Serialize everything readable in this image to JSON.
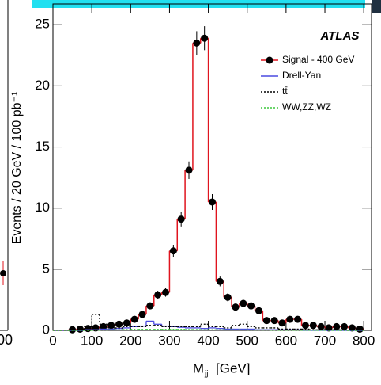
{
  "chart_data": {
    "type": "histogram",
    "title": "ATLAS",
    "y_label": "Events / 20 GeV / 100 pb⁻¹",
    "x_label": {
      "main": "M",
      "sub": "jj",
      "unit": "[GeV]"
    },
    "left_panel_tick": "00",
    "bins": [
      0,
      20,
      40,
      60,
      80,
      100,
      120,
      140,
      160,
      180,
      200,
      220,
      240,
      260,
      280,
      300,
      320,
      340,
      360,
      380,
      400,
      420,
      440,
      460,
      480,
      500,
      520,
      540,
      560,
      580,
      600,
      620,
      640,
      660,
      680,
      700,
      720,
      740,
      760,
      780,
      800
    ],
    "xlim": [
      0,
      820
    ],
    "xticks": [
      0,
      100,
      200,
      300,
      400,
      500,
      600,
      700,
      800
    ],
    "ylim": [
      0,
      26.7
    ],
    "yticks": [
      0,
      5,
      10,
      15,
      20,
      25
    ],
    "series": [
      {
        "name": "Signal - 400 GeV",
        "color": "#e0141e",
        "style": "points",
        "values": [
          0,
          0,
          0.05,
          0.1,
          0.15,
          0.2,
          0.3,
          0.4,
          0.5,
          0.6,
          0.9,
          1.3,
          2.0,
          2.9,
          3.1,
          6.5,
          9.1,
          13.1,
          23.5,
          23.9,
          10.5,
          4.0,
          2.7,
          1.9,
          2.2,
          2.0,
          1.6,
          0.8,
          0.8,
          0.6,
          0.9,
          0.9,
          0.4,
          0.4,
          0.3,
          0.2,
          0.3,
          0.3,
          0.2,
          0.1
        ],
        "errors": [
          0,
          0,
          0.05,
          0.06,
          0.08,
          0.09,
          0.1,
          0.12,
          0.14,
          0.15,
          0.19,
          0.23,
          0.28,
          0.34,
          0.35,
          0.5,
          0.6,
          0.72,
          0.97,
          0.98,
          0.65,
          0.4,
          0.33,
          0.28,
          0.3,
          0.28,
          0.25,
          0.18,
          0.18,
          0.15,
          0.19,
          0.19,
          0.13,
          0.13,
          0.11,
          0.09,
          0.11,
          0.11,
          0.09,
          0.06
        ]
      },
      {
        "name": "Drell-Yan",
        "color": "#4a4ae0",
        "style": "solid",
        "values": [
          0,
          0,
          0,
          0,
          0.05,
          0.05,
          0.1,
          0.1,
          0.15,
          0.2,
          0.3,
          0.35,
          0.75,
          0.5,
          0.35,
          0.3,
          0.25,
          0.2,
          0.2,
          0.15,
          0.2,
          0.15,
          0.1,
          0.1,
          0.1,
          0.1,
          0.05,
          0.05,
          0.05,
          0.05,
          0.05,
          0.05,
          0,
          0,
          0,
          0,
          0,
          0,
          0,
          0
        ]
      },
      {
        "name": "tt̄",
        "color": "#000000",
        "style": "dotted",
        "values": [
          0,
          0,
          0,
          0.05,
          0.3,
          1.3,
          0.5,
          0.2,
          0.2,
          0.3,
          0.3,
          0.3,
          0.4,
          0.4,
          0.3,
          0.3,
          0.3,
          0.3,
          0.3,
          0.5,
          0.3,
          0.3,
          0.2,
          0.4,
          0.5,
          0.3,
          0.2,
          0.2,
          0.2,
          0.1,
          0.1,
          0.1,
          0.1,
          0.05,
          0.05,
          0.05,
          0.05,
          0,
          0,
          0
        ]
      },
      {
        "name": "WW,ZZ,WZ",
        "color": "#3cc83c",
        "style": "dotted",
        "values": [
          0,
          0,
          0,
          0,
          0,
          0.02,
          0.03,
          0.05,
          0.05,
          0.06,
          0.08,
          0.08,
          0.08,
          0.08,
          0.08,
          0.08,
          0.08,
          0.06,
          0.06,
          0.05,
          0.05,
          0.05,
          0.04,
          0.04,
          0.04,
          0.03,
          0.03,
          0.03,
          0.02,
          0.02,
          0.02,
          0.02,
          0.01,
          0.01,
          0.01,
          0.01,
          0,
          0,
          0,
          0
        ]
      }
    ]
  }
}
